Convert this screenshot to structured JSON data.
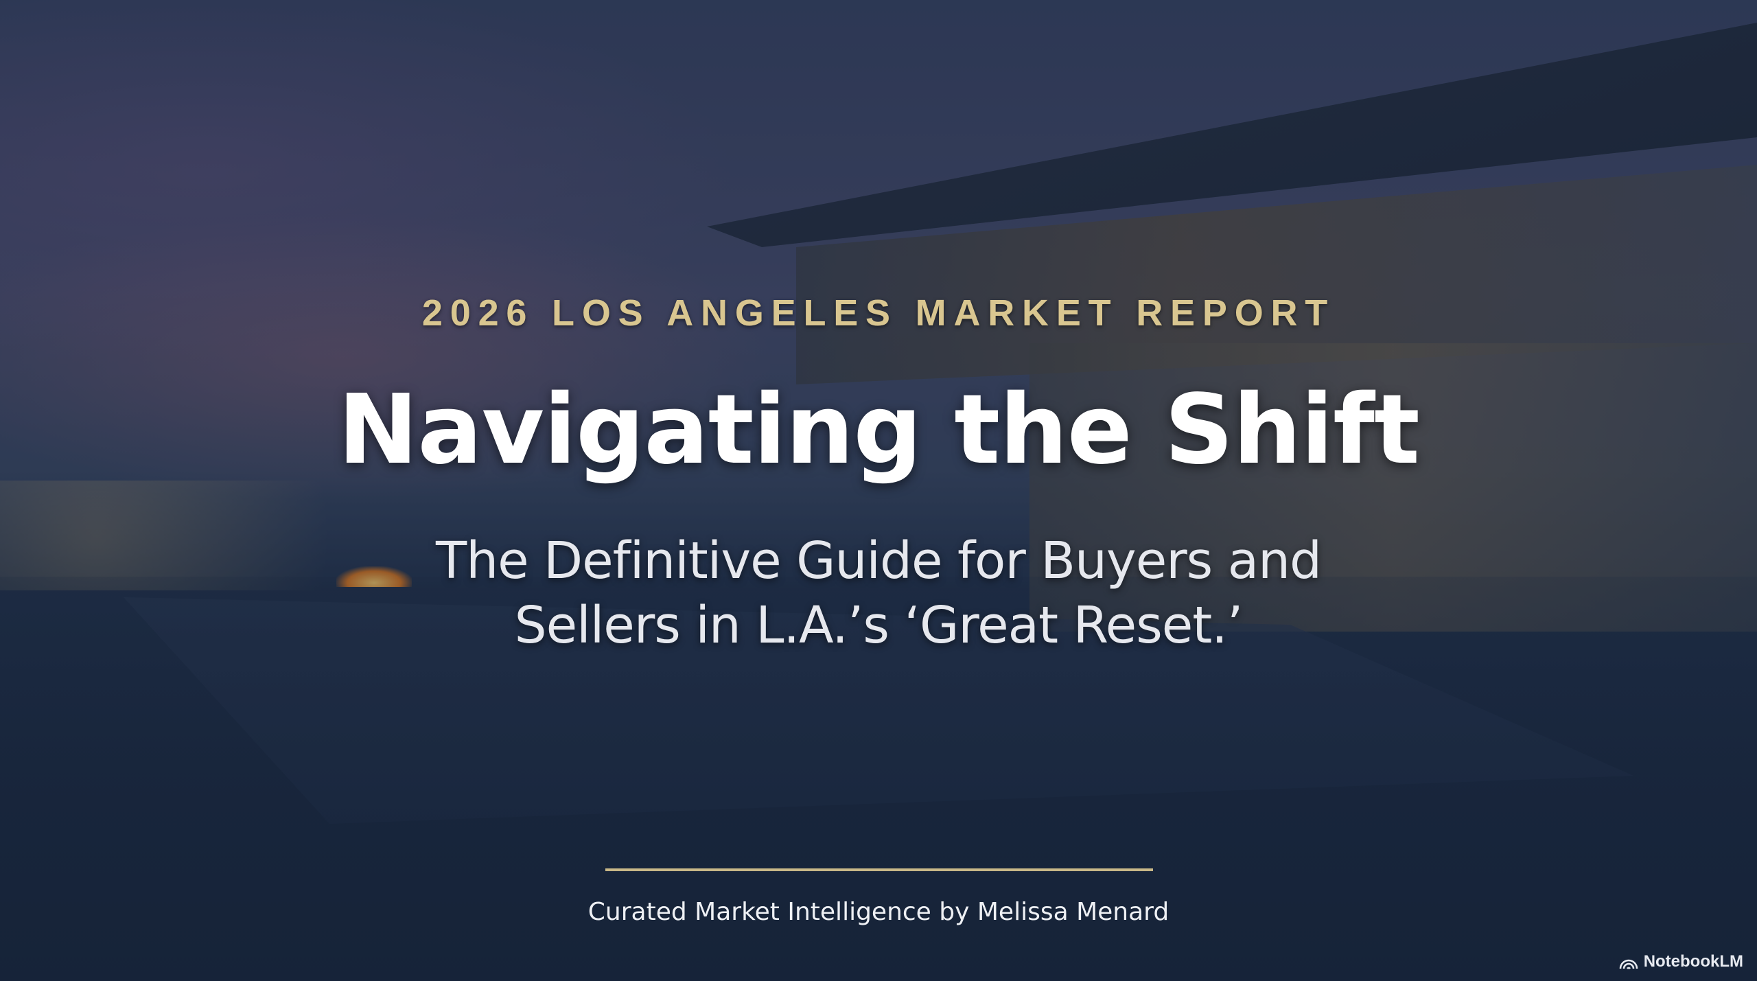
{
  "slide": {
    "kicker": "2026 LOS ANGELES MARKET REPORT",
    "title": "Navigating the Shift",
    "subtitle_line1": "The Definitive Guide for Buyers and",
    "subtitle_line2": "Sellers in L.A.’s ‘Great Reset.’",
    "byline": "Curated Market Intelligence by Melissa Menard"
  },
  "watermark": {
    "label": "NotebookLM",
    "icon": "notebooklm-logo-icon"
  },
  "colors": {
    "accent_gold": "#d9c690",
    "background": "#1b2a40",
    "title": "#ffffff"
  }
}
